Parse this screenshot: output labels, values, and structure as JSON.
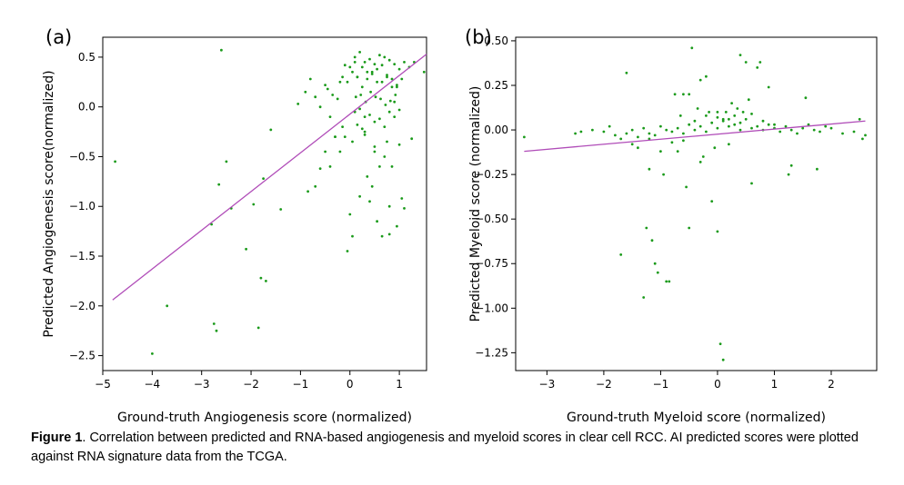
{
  "figure": {
    "caption_label": "Figure 1",
    "caption_text": ". Correlation between predicted and RNA-based angiogenesis and myeloid scores in clear cell RCC. AI predicted scores were plotted against RNA signature data from the TCGA."
  },
  "chart_data": [
    {
      "type": "scatter",
      "panel_label": "(a)",
      "xlabel": "Ground-truth Angiogenesis score (normalized)",
      "ylabel": "Predicted Angiogenesis score(normalized)",
      "xlim": [
        -5.0,
        1.55
      ],
      "ylim": [
        -2.65,
        0.7
      ],
      "xticks": [
        -5,
        -4,
        -3,
        -2,
        -1,
        0,
        1
      ],
      "xtick_labels": [
        "−5",
        "−4",
        "−3",
        "−2",
        "−1",
        "0",
        "1"
      ],
      "yticks": [
        -2.5,
        -2.0,
        -1.5,
        -1.0,
        -0.5,
        0.0,
        0.5
      ],
      "ytick_labels": [
        "−2.5",
        "−2.0",
        "−1.5",
        "−1.0",
        "−0.5",
        "0.0",
        "0.5"
      ],
      "point_color": "#1a9a1a",
      "fit_color": "#b04cb8",
      "fit_line": {
        "x": [
          -4.8,
          1.55
        ],
        "y": [
          -1.94,
          0.53
        ]
      },
      "points": {
        "x": [
          -4.75,
          -2.6,
          -2.5,
          -2.65,
          -2.8,
          -2.75,
          -2.7,
          -2.4,
          -1.95,
          -1.85,
          -1.8,
          -1.7,
          -1.6,
          -1.4,
          -2.1,
          -3.7,
          -4.0,
          -1.75,
          -1.05,
          -0.85,
          -0.7,
          -0.5,
          -0.4,
          -0.3,
          -0.6,
          -0.8,
          -0.2,
          -0.1,
          0.0,
          0.1,
          0.2,
          0.3,
          0.4,
          0.5,
          0.6,
          0.7,
          0.8,
          0.9,
          1.0,
          1.1,
          1.2,
          1.3,
          1.5,
          -0.5,
          -0.45,
          -0.35,
          -0.25,
          -0.15,
          -0.05,
          0.05,
          0.15,
          0.25,
          0.35,
          0.45,
          0.55,
          0.65,
          0.75,
          0.85,
          0.95,
          1.05,
          0.12,
          0.22,
          0.32,
          0.42,
          0.52,
          0.62,
          0.72,
          0.82,
          0.92,
          0.1,
          0.2,
          0.3,
          0.4,
          0.5,
          0.6,
          0.7,
          0.8,
          0.9,
          1.0,
          0.15,
          0.35,
          0.55,
          0.75,
          0.95,
          0.25,
          0.45,
          0.65,
          0.85,
          -0.1,
          0.05,
          0.3,
          0.5,
          0.7,
          1.0,
          0.6,
          -0.3,
          -0.2,
          0.2,
          0.4,
          0.8,
          1.1,
          0.0,
          0.55,
          0.65,
          0.8,
          0.95,
          0.35,
          0.45,
          0.15,
          0.25,
          0.05,
          -0.05,
          0.75,
          0.85,
          -0.6,
          -0.7,
          -0.4,
          -0.9,
          0.9,
          1.05,
          1.25,
          0.5,
          -0.15,
          0.3,
          0.1
        ],
        "y": [
          -0.55,
          0.57,
          -0.55,
          -0.78,
          -1.18,
          -2.18,
          -2.25,
          -1.02,
          -0.98,
          -2.22,
          -1.72,
          -1.75,
          -0.23,
          -1.03,
          -1.43,
          -2.0,
          -2.48,
          -0.72,
          0.03,
          -0.85,
          -0.8,
          -0.45,
          -0.6,
          -0.3,
          -0.62,
          0.28,
          0.25,
          0.42,
          0.4,
          0.5,
          0.55,
          0.45,
          0.48,
          0.43,
          0.52,
          0.5,
          0.47,
          0.43,
          0.38,
          0.45,
          0.4,
          0.45,
          0.35,
          0.22,
          0.18,
          0.12,
          0.08,
          0.3,
          0.25,
          0.35,
          0.3,
          0.2,
          0.28,
          0.33,
          0.38,
          0.25,
          0.3,
          0.2,
          0.22,
          0.28,
          0.1,
          0.12,
          0.05,
          0.15,
          0.1,
          0.08,
          0.02,
          0.06,
          0.12,
          -0.05,
          -0.02,
          -0.1,
          -0.08,
          -0.15,
          -0.12,
          -0.2,
          -0.05,
          -0.1,
          -0.03,
          0.3,
          0.35,
          0.25,
          0.32,
          0.2,
          0.4,
          0.35,
          0.42,
          0.28,
          -0.3,
          -0.35,
          -0.25,
          -0.4,
          -0.5,
          -0.38,
          -0.6,
          -0.3,
          -0.45,
          -0.9,
          -0.95,
          -1.0,
          -1.02,
          -1.08,
          -1.15,
          -1.3,
          -1.28,
          -1.2,
          -0.7,
          -0.8,
          -0.18,
          -0.22,
          -1.3,
          -1.45,
          -0.35,
          -0.6,
          0.0,
          0.1,
          -0.1,
          0.15,
          0.05,
          -0.92,
          -0.32,
          -0.45,
          -0.2,
          -0.28,
          0.45
        ],
        "note": "approximate positions read from the scatter"
      }
    },
    {
      "type": "scatter",
      "panel_label": "(b)",
      "xlabel": "Ground-truth Myeloid score (normalized)",
      "ylabel": "Predicted Myeloid score (normalized)",
      "xlim": [
        -3.55,
        2.8
      ],
      "ylim": [
        -1.35,
        0.52
      ],
      "xticks": [
        -3,
        -2,
        -1,
        0,
        1,
        2
      ],
      "xtick_labels": [
        "−3",
        "−2",
        "−1",
        "0",
        "1",
        "2"
      ],
      "yticks": [
        -1.25,
        -1.0,
        -0.75,
        -0.5,
        -0.25,
        0.0,
        0.25,
        0.5
      ],
      "ytick_labels": [
        "−1.25",
        "−1.00",
        "−0.75",
        "−0.50",
        "−0.25",
        "0.00",
        "0.25",
        "0.50"
      ],
      "point_color": "#1a9a1a",
      "fit_color": "#b04cb8",
      "fit_line": {
        "x": [
          -3.4,
          2.6
        ],
        "y": [
          -0.12,
          0.05
        ]
      },
      "points": {
        "x": [
          -3.4,
          -2.5,
          -2.4,
          -2.2,
          -2.0,
          -1.9,
          -1.8,
          -1.7,
          -1.6,
          -1.5,
          -1.4,
          -1.3,
          -1.2,
          -1.1,
          -1.0,
          -0.9,
          -0.8,
          -0.7,
          -0.6,
          -0.5,
          -0.4,
          -0.3,
          -0.2,
          -0.1,
          0.0,
          0.1,
          0.2,
          0.3,
          0.4,
          0.5,
          0.6,
          0.7,
          0.8,
          0.9,
          1.0,
          1.1,
          1.2,
          1.3,
          1.4,
          1.5,
          1.6,
          1.7,
          1.8,
          1.9,
          2.0,
          2.2,
          2.4,
          2.5,
          2.6,
          -1.5,
          -1.4,
          -1.2,
          -1.0,
          -0.8,
          -0.6,
          -0.4,
          -0.2,
          0.0,
          0.2,
          0.4,
          0.6,
          0.8,
          1.0,
          -1.2,
          -1.15,
          -1.1,
          -1.05,
          -1.3,
          -1.7,
          -1.25,
          -0.5,
          -0.3,
          -0.1,
          0.05,
          0.1,
          -0.9,
          -0.7,
          -0.5,
          0.5,
          0.7,
          1.3,
          1.75,
          -0.45,
          -0.55,
          0.35,
          0.45,
          0.25,
          -0.65,
          0.15,
          -0.35,
          0.3,
          -0.15,
          0.0,
          0.1,
          -0.05,
          0.2,
          -0.25,
          -1.6,
          -0.2,
          -0.75,
          0.55,
          0.75,
          1.55,
          0.9,
          -0.85,
          0.0,
          -0.95,
          2.55,
          1.25,
          -0.6,
          -0.3,
          0.4,
          0.6
        ],
        "y": [
          -0.04,
          -0.02,
          -0.01,
          0.0,
          -0.01,
          0.02,
          -0.03,
          -0.05,
          -0.02,
          0.0,
          -0.04,
          0.01,
          -0.02,
          -0.03,
          0.02,
          0.0,
          -0.01,
          0.01,
          -0.02,
          0.03,
          0.0,
          0.02,
          -0.01,
          0.04,
          0.01,
          0.05,
          0.02,
          0.03,
          0.0,
          0.06,
          0.01,
          0.02,
          0.0,
          0.03,
          0.01,
          -0.01,
          0.02,
          0.0,
          -0.02,
          0.01,
          0.03,
          0.0,
          -0.01,
          0.02,
          0.01,
          -0.02,
          -0.01,
          0.06,
          -0.03,
          -0.08,
          -0.1,
          -0.05,
          -0.12,
          -0.07,
          -0.06,
          0.05,
          0.08,
          0.07,
          0.06,
          0.04,
          0.09,
          0.05,
          0.03,
          -0.22,
          -0.62,
          -0.75,
          -0.8,
          -0.94,
          -0.7,
          -0.55,
          -0.55,
          -0.18,
          -0.4,
          -1.2,
          -1.29,
          -0.85,
          -0.12,
          0.2,
          0.38,
          0.35,
          -0.2,
          -0.22,
          0.46,
          -0.32,
          0.12,
          0.1,
          0.15,
          0.08,
          0.1,
          0.12,
          0.08,
          0.1,
          0.1,
          0.06,
          -0.1,
          -0.08,
          -0.15,
          0.32,
          0.3,
          0.2,
          0.17,
          0.38,
          0.18,
          0.24,
          -0.85,
          -0.57,
          -0.25,
          -0.05,
          -0.25,
          0.2,
          0.28,
          0.42,
          -0.3
        ],
        "note": "approximate positions read from the scatter"
      }
    }
  ]
}
